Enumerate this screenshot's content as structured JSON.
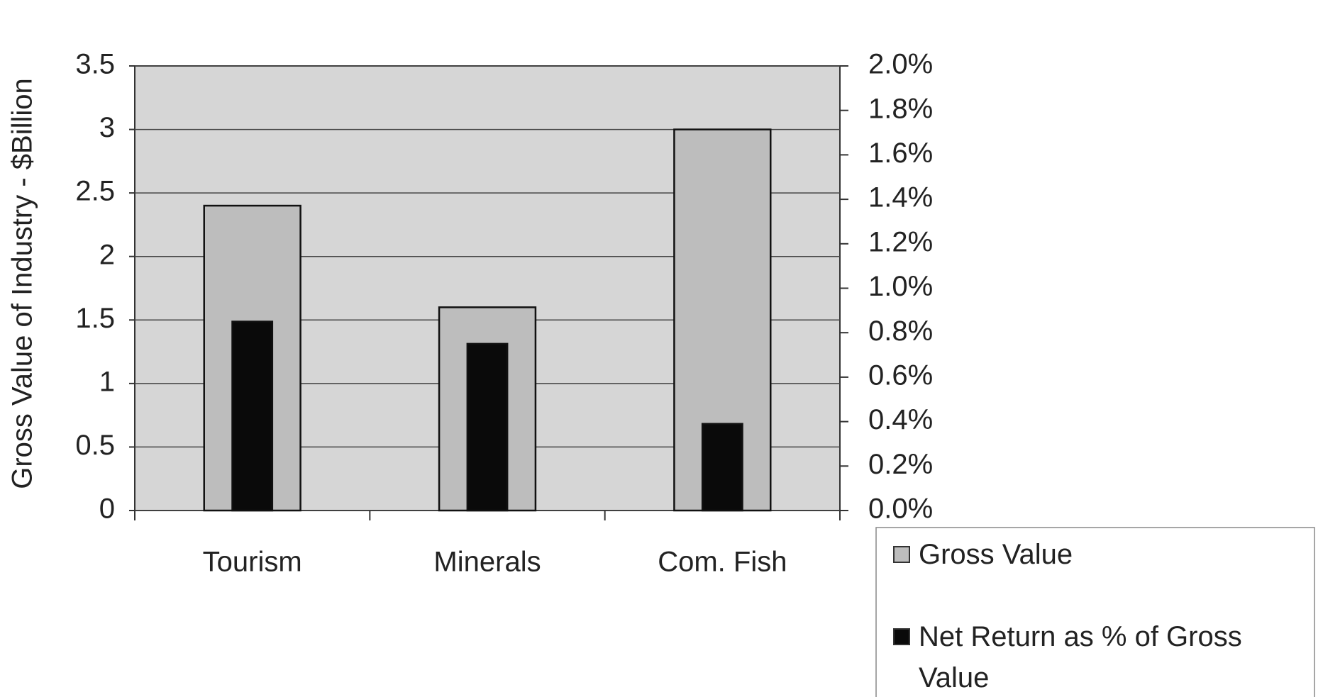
{
  "chart_data": {
    "type": "bar",
    "y_label": "Gross Value of Industry - $Billion",
    "categories": [
      "Tourism",
      "Minerals",
      "Com. Fish"
    ],
    "series": [
      {
        "name": "Gross Value",
        "color": "#bdbdbd",
        "values": [
          2.4,
          1.6,
          3.0
        ]
      },
      {
        "name": "Net Return as % of Gross Value",
        "color": "#0a0a0a",
        "axis": "y2",
        "values": [
          0.85,
          0.75,
          0.39
        ]
      }
    ],
    "ylim": [
      0,
      3.5
    ],
    "yticks": [
      0,
      0.5,
      1,
      1.5,
      2,
      2.5,
      3,
      3.5
    ],
    "y2lim": [
      0,
      2.0
    ],
    "y2ticks": [
      {
        "value": 0,
        "label": "0.0%"
      },
      {
        "value": 0.2,
        "label": "0.2%"
      },
      {
        "value": 0.4,
        "label": "0.4%"
      },
      {
        "value": 0.6,
        "label": "0.6%"
      },
      {
        "value": 0.8,
        "label": "0.8%"
      },
      {
        "value": 1.0,
        "label": "1.0%"
      },
      {
        "value": 1.2,
        "label": "1.2%"
      },
      {
        "value": 1.4,
        "label": "1.4%"
      },
      {
        "value": 1.6,
        "label": "1.6%"
      },
      {
        "value": 1.8,
        "label": "1.8%"
      },
      {
        "value": 2.0,
        "label": "2.0%"
      }
    ],
    "grid": true
  }
}
